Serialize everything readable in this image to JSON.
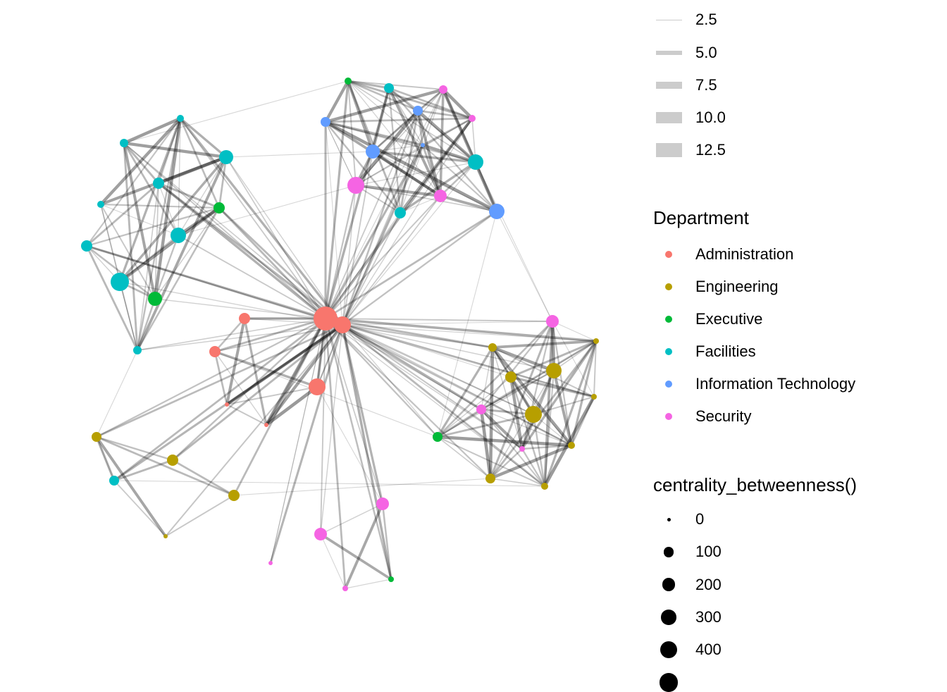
{
  "legend_weight": {
    "items": [
      {
        "label": "2.5",
        "value": 2.5
      },
      {
        "label": "5.0",
        "value": 5.0
      },
      {
        "label": "7.5",
        "value": 7.5
      },
      {
        "label": "10.0",
        "value": 10.0
      },
      {
        "label": "12.5",
        "value": 12.5
      }
    ],
    "color": "#cccccc"
  },
  "legend_department": {
    "title": "Department",
    "items": [
      {
        "label": "Administration",
        "color": "#F8766D"
      },
      {
        "label": "Engineering",
        "color": "#B79F00"
      },
      {
        "label": "Executive",
        "color": "#00BA38"
      },
      {
        "label": "Facilities",
        "color": "#00BFC4"
      },
      {
        "label": "Information Technology",
        "color": "#619CFF"
      },
      {
        "label": "Security",
        "color": "#F564E3"
      }
    ]
  },
  "legend_size": {
    "title": "centrality_betweenness()",
    "items": [
      {
        "label": "0",
        "value": 0
      },
      {
        "label": "100",
        "value": 100
      },
      {
        "label": "200",
        "value": 200
      },
      {
        "label": "300",
        "value": 300
      },
      {
        "label": "400",
        "value": 400
      },
      {
        "label": "",
        "value": 500
      }
    ]
  },
  "chart_data": {
    "type": "network",
    "node_departments": [
      "Administration",
      "Administration",
      "Administration",
      "Administration",
      "Administration",
      "Administration",
      "Administration",
      "Engineering",
      "Engineering",
      "Engineering",
      "Engineering",
      "Engineering",
      "Engineering",
      "Engineering",
      "Engineering",
      "Engineering",
      "Engineering",
      "Engineering",
      "Engineering",
      "Engineering",
      "Executive",
      "Executive",
      "Executive",
      "Executive",
      "Executive",
      "Facilities",
      "Facilities",
      "Facilities",
      "Facilities",
      "Facilities",
      "Facilities",
      "Facilities",
      "Facilities",
      "Facilities",
      "Facilities",
      "Facilities",
      "Facilities",
      "Facilities",
      "Information Technology",
      "Information Technology",
      "Information Technology",
      "Information Technology",
      "Information Technology",
      "Security",
      "Security",
      "Security",
      "Security",
      "Security",
      "Security",
      "Security",
      "Security",
      "Security",
      "Security",
      "Security"
    ],
    "node_betweenness": [
      930,
      400,
      134,
      134,
      400,
      1,
      1,
      54,
      320,
      134,
      400,
      10,
      10,
      28,
      28,
      90,
      90,
      134,
      134,
      1,
      28,
      134,
      249,
      90,
      10,
      90,
      320,
      134,
      28,
      54,
      249,
      134,
      28,
      320,
      134,
      489,
      54,
      90,
      90,
      90,
      249,
      1,
      320,
      54,
      28,
      400,
      187,
      187,
      90,
      10,
      187,
      187,
      10,
      1
    ],
    "clusters": [
      [
        20,
        25,
        43,
        44,
        38,
        39,
        40,
        41,
        45,
        26,
        27,
        46,
        42
      ],
      [
        28,
        29,
        30,
        31,
        32,
        33,
        34,
        35,
        36,
        22,
        21
      ],
      [
        7,
        8,
        9,
        10,
        11,
        12,
        13,
        14,
        15,
        47,
        48,
        49,
        23
      ],
      [
        16,
        17,
        18,
        19,
        37
      ],
      [
        50,
        51,
        52,
        24
      ],
      [
        0,
        1,
        2,
        3,
        4,
        5,
        6
      ]
    ],
    "hub_nodes": [
      0,
      1
    ],
    "weight_range": [
      1,
      13
    ]
  }
}
